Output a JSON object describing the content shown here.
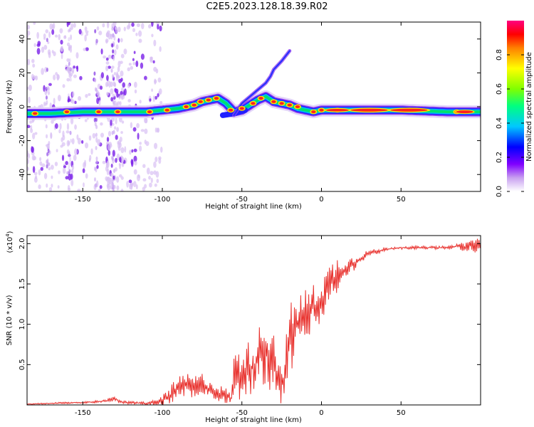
{
  "title": "C2E5.2023.128.18.39.R02",
  "chart_data": [
    {
      "type": "heatmap",
      "title": "C2E5.2023.128.18.39.R02",
      "xlabel": "Height of straight line (km)",
      "ylabel": "Frequency (Hz)",
      "xlim": [
        -185,
        100
      ],
      "ylim": [
        -50,
        50
      ],
      "xticks": [
        -150,
        -100,
        -50,
        0,
        50
      ],
      "yticks": [
        -40,
        -20,
        0,
        20,
        40
      ],
      "xtick_labels": [
        "-150",
        "-100",
        "-50",
        "0",
        "50"
      ],
      "ytick_labels": [
        "-40",
        "-20",
        "0",
        "20",
        "40"
      ],
      "colorbar": {
        "label": "Normalized spectral amplitude",
        "range": [
          0,
          1
        ],
        "ticks": [
          0.0,
          0.2,
          0.4,
          0.6,
          0.8
        ],
        "tick_labels": [
          "0.0",
          "0.2",
          "0.4",
          "0.6",
          "0.8"
        ],
        "colors": [
          "#ffffff",
          "#c8a0f0",
          "#8000ff",
          "#0000ff",
          "#00c8ff",
          "#00ff80",
          "#80ff00",
          "#ffff00",
          "#ff8000",
          "#ff0000",
          "#ff0080"
        ]
      },
      "ridge": {
        "x": [
          -185,
          -170,
          -150,
          -130,
          -110,
          -100,
          -90,
          -80,
          -75,
          -70,
          -65,
          -60,
          -55,
          -50,
          -45,
          -40,
          -35,
          -30,
          -25,
          -20,
          -15,
          -10,
          -5,
          0,
          20,
          50,
          80,
          100
        ],
        "y": [
          -4,
          -4,
          -3,
          -3,
          -3,
          -2,
          -1,
          1,
          3,
          4,
          5,
          2,
          -3,
          -2,
          1,
          4,
          6,
          3,
          2,
          1,
          -1,
          -2,
          -3,
          -2,
          -2,
          -2,
          -3,
          -3
        ],
        "peak_x": [
          -180,
          -160,
          -140,
          -128,
          -108,
          -97,
          -85,
          -80,
          -76,
          -71,
          -66,
          -57,
          -50,
          -43,
          -38,
          -30,
          -25,
          -20,
          -15,
          -5,
          0,
          10,
          30,
          55,
          85
        ],
        "peak_y": [
          -4,
          -3,
          -3,
          -3,
          -3,
          -2,
          0,
          1,
          3,
          4,
          5,
          -2,
          -1,
          2,
          5,
          3,
          2,
          1,
          0,
          -3,
          -2,
          -2,
          -2,
          -2,
          -3
        ]
      },
      "branch": {
        "x": [
          -55,
          -50,
          -45,
          -40,
          -35,
          -32,
          -30,
          -25,
          -20
        ],
        "y": [
          -5,
          2,
          6,
          10,
          14,
          18,
          22,
          27,
          33
        ]
      }
    },
    {
      "type": "line",
      "xlabel": "Height of straight line (km)",
      "ylabel": "SNR (10 * v/v)",
      "multiplier_label": "(x10",
      "multiplier_exp": "4",
      "xlim": [
        -185,
        100
      ],
      "ylim": [
        0,
        2.1
      ],
      "xticks": [
        -150,
        -100,
        -50,
        0,
        50
      ],
      "yticks": [
        0.5,
        1.0,
        1.5,
        2.0
      ],
      "xtick_labels": [
        "-150",
        "-100",
        "-50",
        "0",
        "50"
      ],
      "ytick_labels": [
        "0.5",
        "1.0",
        "1.5",
        "2.0"
      ],
      "series": [
        {
          "name": "SNR",
          "color": "#e8302c",
          "x": [
            -185,
            -170,
            -150,
            -135,
            -130,
            -125,
            -110,
            -105,
            -100,
            -95,
            -90,
            -85,
            -80,
            -75,
            -70,
            -65,
            -60,
            -57,
            -55,
            -50,
            -45,
            -40,
            -35,
            -30,
            -25,
            -20,
            -15,
            -10,
            -5,
            0,
            5,
            10,
            15,
            20,
            25,
            30,
            35,
            40,
            50,
            60,
            70,
            80,
            85,
            90,
            95,
            100
          ],
          "y": [
            0.01,
            0.02,
            0.03,
            0.05,
            0.08,
            0.03,
            0.02,
            0.03,
            0.05,
            0.12,
            0.2,
            0.24,
            0.22,
            0.25,
            0.2,
            0.15,
            0.12,
            0.08,
            0.35,
            0.4,
            0.45,
            0.55,
            0.7,
            0.55,
            0.2,
            0.8,
            1.0,
            1.1,
            1.2,
            1.3,
            1.5,
            1.6,
            1.7,
            1.75,
            1.82,
            1.88,
            1.9,
            1.93,
            1.95,
            1.95,
            1.95,
            1.95,
            1.97,
            1.96,
            1.98,
            1.97
          ],
          "noise": [
            0.005,
            0.01,
            0.01,
            0.02,
            0.03,
            0.02,
            0.02,
            0.03,
            0.08,
            0.12,
            0.15,
            0.15,
            0.15,
            0.15,
            0.12,
            0.1,
            0.1,
            0.05,
            0.3,
            0.35,
            0.35,
            0.4,
            0.45,
            0.45,
            0.2,
            0.45,
            0.4,
            0.35,
            0.3,
            0.3,
            0.25,
            0.25,
            0.12,
            0.1,
            0.06,
            0.05,
            0.03,
            0.02,
            0.02,
            0.02,
            0.02,
            0.02,
            0.04,
            0.06,
            0.1,
            0.12
          ]
        }
      ]
    }
  ]
}
